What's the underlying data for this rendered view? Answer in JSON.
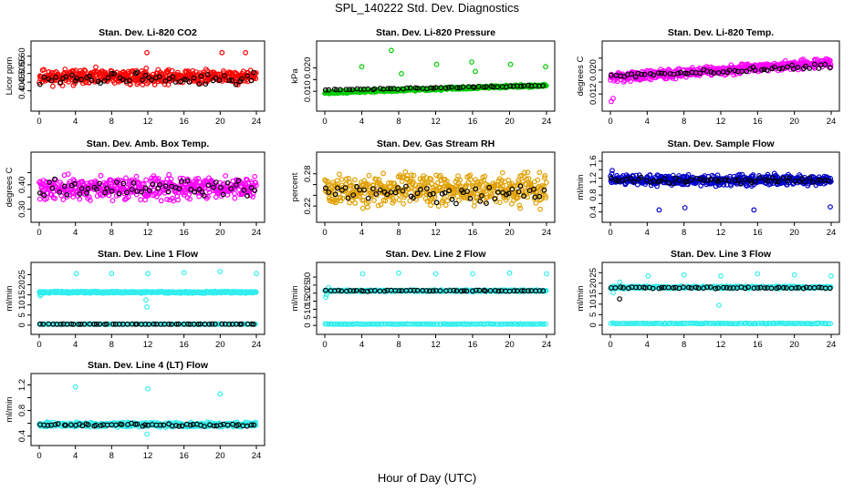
{
  "figure": {
    "title": "SPL_140222  Std. Dev. Diagnostics",
    "xlabel": "Hour of Day (UTC)"
  },
  "chart_data": [
    {
      "type": "scatter",
      "title": "Stan. Dev. Li-820 CO2",
      "ylabel": "Licor ppm",
      "xlim": [
        0,
        24
      ],
      "ylim": [
        0.33,
        0.64
      ],
      "xticks": [
        0,
        4,
        8,
        12,
        16,
        20,
        24
      ],
      "yticks": [
        0.4,
        0.45,
        0.5,
        0.55,
        0.6
      ],
      "ytick_labels": [
        "0.40",
        "0.45",
        "0.50",
        "0.55",
        "0.60"
      ],
      "series": [
        {
          "color": "#ff0000",
          "pattern": {
            "kind": "noise",
            "base": 0.48,
            "spread": 0.12,
            "n": 480,
            "seed": 11,
            "outliers": [
              [
                20.2,
                0.62
              ],
              [
                11.9,
                0.62
              ],
              [
                22.8,
                0.62
              ]
            ]
          }
        },
        {
          "color": "#000000",
          "pattern": {
            "kind": "noise",
            "base": 0.47,
            "spread": 0.1,
            "n": 58,
            "seed": 12,
            "outliers": []
          }
        }
      ]
    },
    {
      "type": "scatter",
      "title": "Stan. Dev. Li-820 Pressure",
      "ylabel": "kPa",
      "xlim": [
        0,
        24
      ],
      "ylim": [
        0.005,
        0.028
      ],
      "xticks": [
        0,
        4,
        8,
        12,
        16,
        20,
        24
      ],
      "yticks": [
        0.01,
        0.015,
        0.02
      ],
      "ytick_labels": [
        "0.010",
        "",
        "0.020"
      ],
      "series": [
        {
          "color": "#00cc00",
          "pattern": {
            "kind": "trend",
            "start": 0.0095,
            "end": 0.0125,
            "spread": 0.0015,
            "n": 480,
            "seed": 21,
            "outliers": [
              [
                7.2,
                0.0275
              ],
              [
                4.0,
                0.0205
              ],
              [
                8.3,
                0.0175
              ],
              [
                12.1,
                0.0215
              ],
              [
                15.9,
                0.0225
              ],
              [
                16.3,
                0.0185
              ],
              [
                20.1,
                0.0215
              ],
              [
                23.9,
                0.0205
              ]
            ]
          }
        },
        {
          "color": "#000000",
          "pattern": {
            "kind": "trend",
            "start": 0.0105,
            "end": 0.0125,
            "spread": 0.0008,
            "n": 58,
            "seed": 22,
            "outliers": []
          }
        }
      ]
    },
    {
      "type": "scatter",
      "title": "Stan. Dev. Li-820 Temp.",
      "ylabel": "degrees C",
      "xlim": [
        0,
        24
      ],
      "ylim": [
        0.009,
        0.027
      ],
      "xticks": [
        0,
        4,
        8,
        12,
        16,
        20,
        24
      ],
      "yticks": [
        0.012,
        0.016,
        0.02,
        0.024
      ],
      "ytick_labels": [
        "0.012",
        "",
        "0.020",
        ""
      ],
      "series": [
        {
          "color": "#ff00ff",
          "pattern": {
            "kind": "trend",
            "start": 0.0175,
            "end": 0.0225,
            "spread": 0.0045,
            "n": 480,
            "seed": 31,
            "outliers": [
              [
                0.1,
                0.0095
              ],
              [
                0.3,
                0.0105
              ]
            ]
          }
        },
        {
          "color": "#000000",
          "pattern": {
            "kind": "trend",
            "start": 0.018,
            "end": 0.0215,
            "spread": 0.0025,
            "n": 58,
            "seed": 32,
            "outliers": []
          }
        }
      ]
    },
    {
      "type": "scatter",
      "title": "Stan. Dev. Amb. Box Temp.",
      "ylabel": "degrees C",
      "xlim": [
        0,
        24
      ],
      "ylim": [
        0.28,
        0.5
      ],
      "xticks": [
        0,
        4,
        8,
        12,
        16,
        20,
        24
      ],
      "yticks": [
        0.3,
        0.35,
        0.4,
        0.45
      ],
      "ytick_labels": [
        "0.30",
        "",
        "0.40",
        ""
      ],
      "series": [
        {
          "color": "#ff00ff",
          "pattern": {
            "kind": "noise",
            "base": 0.385,
            "spread": 0.13,
            "n": 480,
            "seed": 41,
            "outliers": []
          }
        },
        {
          "color": "#000000",
          "pattern": {
            "kind": "noise",
            "base": 0.385,
            "spread": 0.09,
            "n": 58,
            "seed": 42,
            "outliers": []
          }
        }
      ]
    },
    {
      "type": "scatter",
      "title": "Stan. Dev. Gas Stream RH",
      "ylabel": "percent",
      "xlim": [
        0,
        24
      ],
      "ylim": [
        0.205,
        0.305
      ],
      "xticks": [
        0,
        4,
        8,
        12,
        16,
        20,
        24
      ],
      "yticks": [
        0.22,
        0.24,
        0.26,
        0.28
      ],
      "ytick_labels": [
        "0.22",
        "",
        "",
        "0.28"
      ],
      "series": [
        {
          "color": "#e0a000",
          "pattern": {
            "kind": "noise",
            "base": 0.25,
            "spread": 0.08,
            "n": 480,
            "seed": 51,
            "outliers": []
          }
        },
        {
          "color": "#000000",
          "pattern": {
            "kind": "noise",
            "base": 0.245,
            "spread": 0.05,
            "n": 58,
            "seed": 52,
            "outliers": []
          }
        }
      ]
    },
    {
      "type": "scatter",
      "title": "Stan. Dev. Sample Flow",
      "ylabel": "ml/min",
      "xlim": [
        0,
        24
      ],
      "ylim": [
        0.35,
        1.62
      ],
      "xticks": [
        0,
        4,
        8,
        12,
        16,
        20,
        24
      ],
      "yticks": [
        0.4,
        0.6,
        0.8,
        1.0,
        1.2,
        1.4,
        1.6
      ],
      "ytick_labels": [
        "0.4",
        "",
        "0.8",
        "",
        "1.2",
        "",
        "1.6"
      ],
      "series": [
        {
          "color": "#0000cc",
          "pattern": {
            "kind": "noise",
            "base": 1.15,
            "spread": 0.35,
            "n": 480,
            "seed": 61,
            "outliers": [
              [
                5.3,
                0.45
              ],
              [
                8.1,
                0.5
              ],
              [
                15.6,
                0.45
              ],
              [
                23.9,
                0.52
              ],
              [
                0.2,
                1.38
              ]
            ]
          }
        },
        {
          "color": "#000000",
          "pattern": {
            "kind": "noise",
            "base": 1.15,
            "spread": 0.22,
            "n": 58,
            "seed": 62,
            "outliers": []
          }
        }
      ]
    },
    {
      "type": "scatter",
      "title": "Stan. Dev. Line 1 Flow",
      "ylabel": "ml/min",
      "xlim": [
        0,
        24
      ],
      "ylim": [
        -0.5,
        27
      ],
      "xticks": [
        0,
        4,
        8,
        12,
        16,
        20,
        24
      ],
      "yticks": [
        0,
        5,
        10,
        15,
        20,
        25
      ],
      "ytick_labels": [
        "0",
        "5",
        "10",
        "15",
        "20",
        "25"
      ],
      "series": [
        {
          "color": "#33eeee",
          "pattern": {
            "kind": "noise",
            "base": 16.3,
            "spread": 1.2,
            "n": 480,
            "seed": 71,
            "outliers": [
              [
                0.1,
                14.5
              ],
              [
                0.2,
                15.2
              ],
              [
                4.1,
                25.5
              ],
              [
                8.0,
                25.5
              ],
              [
                12.0,
                25.5
              ],
              [
                16.0,
                26.0
              ],
              [
                20.0,
                26.5
              ],
              [
                24.0,
                25.5
              ],
              [
                11.9,
                9.0
              ],
              [
                11.8,
                12.5
              ]
            ]
          }
        },
        {
          "color": "#33eeee",
          "pattern": {
            "kind": "flat",
            "base": 0.5,
            "spread": 0.3,
            "n": 140,
            "seed": 72,
            "outliers": []
          }
        },
        {
          "color": "#000000",
          "pattern": {
            "kind": "flat",
            "base": 0.5,
            "spread": 0.2,
            "n": 58,
            "seed": 73,
            "outliers": []
          }
        }
      ]
    },
    {
      "type": "scatter",
      "title": "Stan. Dev. Line 2 Flow",
      "ylabel": "ml/min",
      "xlim": [
        0,
        24
      ],
      "ylim": [
        -0.5,
        34
      ],
      "xticks": [
        0,
        4,
        8,
        12,
        16,
        20,
        24
      ],
      "yticks": [
        0,
        5,
        10,
        15,
        20,
        25,
        30
      ],
      "ytick_labels": [
        "0",
        "5",
        "10",
        "15",
        "20",
        "25",
        "30"
      ],
      "series": [
        {
          "color": "#33eeee",
          "pattern": {
            "kind": "noise",
            "base": 21.5,
            "spread": 1.4,
            "n": 480,
            "seed": 81,
            "outliers": [
              [
                0.1,
                17.5
              ],
              [
                0.2,
                19.0
              ],
              [
                0.4,
                23.5
              ],
              [
                4.1,
                32.0
              ],
              [
                8.0,
                32.5
              ],
              [
                12.0,
                32.0
              ],
              [
                16.0,
                32.0
              ],
              [
                20.0,
                32.5
              ],
              [
                24.0,
                32.0
              ]
            ]
          }
        },
        {
          "color": "#33eeee",
          "pattern": {
            "kind": "flat",
            "base": 0.8,
            "spread": 0.5,
            "n": 140,
            "seed": 82,
            "outliers": []
          }
        },
        {
          "color": "#000000",
          "pattern": {
            "kind": "noise",
            "base": 21.5,
            "spread": 0.9,
            "n": 58,
            "seed": 83,
            "outliers": []
          }
        }
      ]
    },
    {
      "type": "scatter",
      "title": "Stan. Dev. Line 3 Flow",
      "ylabel": "ml/min",
      "xlim": [
        0,
        24
      ],
      "ylim": [
        -0.5,
        26
      ],
      "xticks": [
        0,
        4,
        8,
        12,
        16,
        20,
        24
      ],
      "yticks": [
        0,
        5,
        10,
        15,
        20,
        25
      ],
      "ytick_labels": [
        "0",
        "5",
        "10",
        "15",
        "20",
        "25"
      ],
      "series": [
        {
          "color": "#33eeee",
          "pattern": {
            "kind": "noise",
            "base": 18.0,
            "spread": 1.6,
            "n": 480,
            "seed": 91,
            "outliers": [
              [
                0.3,
                15.5
              ],
              [
                4.1,
                23.5
              ],
              [
                8.0,
                24.0
              ],
              [
                12.0,
                23.5
              ],
              [
                16.0,
                24.5
              ],
              [
                20.0,
                24.0
              ],
              [
                24.0,
                23.5
              ],
              [
                11.8,
                9.5
              ],
              [
                1.0,
                20.5
              ]
            ]
          }
        },
        {
          "color": "#33eeee",
          "pattern": {
            "kind": "flat",
            "base": 0.8,
            "spread": 0.5,
            "n": 140,
            "seed": 92,
            "outliers": []
          }
        },
        {
          "color": "#000000",
          "pattern": {
            "kind": "noise",
            "base": 17.8,
            "spread": 1.0,
            "n": 58,
            "seed": 93,
            "outliers": [
              [
                1.0,
                12.5
              ]
            ]
          }
        }
      ]
    },
    {
      "type": "scatter",
      "title": "Stan. Dev. Line 4 (LT) Flow",
      "ylabel": "ml/min",
      "xlim": [
        0,
        24
      ],
      "ylim": [
        0.38,
        1.25
      ],
      "xticks": [
        0,
        4,
        8,
        12,
        16,
        20,
        24
      ],
      "yticks": [
        0.4,
        0.6,
        0.8,
        1.0,
        1.2
      ],
      "ytick_labels": [
        "0.4",
        "",
        "0.8",
        "",
        "1.2"
      ],
      "series": [
        {
          "color": "#33eeee",
          "pattern": {
            "kind": "noise",
            "base": 0.58,
            "spread": 0.1,
            "n": 480,
            "seed": 101,
            "outliers": [
              [
                4.0,
                1.17
              ],
              [
                12.0,
                1.14
              ],
              [
                20.0,
                1.06
              ],
              [
                11.9,
                0.43
              ]
            ]
          }
        },
        {
          "color": "#000000",
          "pattern": {
            "kind": "noise",
            "base": 0.575,
            "spread": 0.06,
            "n": 58,
            "seed": 102,
            "outliers": []
          }
        }
      ]
    }
  ]
}
